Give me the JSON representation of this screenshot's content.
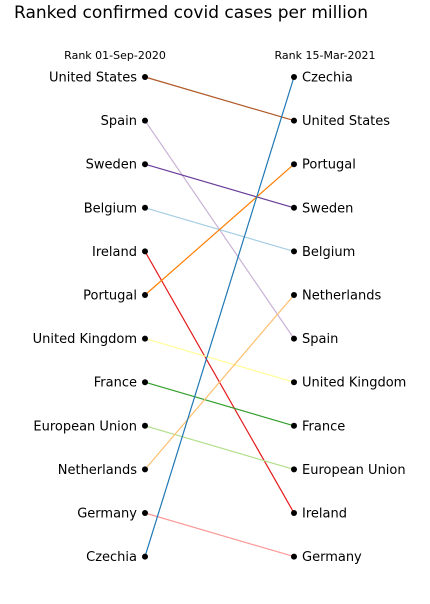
{
  "chart_data": {
    "type": "slope",
    "title": "Ranked confirmed covid cases per million",
    "left_header": "Rank 01-Sep-2020",
    "right_header": "Rank 15-Mar-2021",
    "left_order": [
      "United States",
      "Spain",
      "Sweden",
      "Belgium",
      "Ireland",
      "Portugal",
      "United Kingdom",
      "France",
      "European Union",
      "Netherlands",
      "Germany",
      "Czechia"
    ],
    "right_order": [
      "Czechia",
      "United States",
      "Portugal",
      "Sweden",
      "Belgium",
      "Netherlands",
      "Spain",
      "United Kingdom",
      "France",
      "European Union",
      "Ireland",
      "Germany"
    ],
    "series": [
      {
        "name": "United States",
        "rank_start": 1,
        "rank_end": 2,
        "color": "#b15928"
      },
      {
        "name": "Spain",
        "rank_start": 2,
        "rank_end": 7,
        "color": "#cab2d6"
      },
      {
        "name": "Sweden",
        "rank_start": 3,
        "rank_end": 4,
        "color": "#6a3d9a"
      },
      {
        "name": "Belgium",
        "rank_start": 4,
        "rank_end": 5,
        "color": "#a6cee3"
      },
      {
        "name": "Ireland",
        "rank_start": 5,
        "rank_end": 11,
        "color": "#e31a1c"
      },
      {
        "name": "Portugal",
        "rank_start": 6,
        "rank_end": 3,
        "color": "#ff7f00"
      },
      {
        "name": "United Kingdom",
        "rank_start": 7,
        "rank_end": 8,
        "color": "#ffff99"
      },
      {
        "name": "France",
        "rank_start": 8,
        "rank_end": 9,
        "color": "#33a02c"
      },
      {
        "name": "European Union",
        "rank_start": 9,
        "rank_end": 10,
        "color": "#b2df8a"
      },
      {
        "name": "Netherlands",
        "rank_start": 10,
        "rank_end": 6,
        "color": "#fdbf6f"
      },
      {
        "name": "Germany",
        "rank_start": 11,
        "rank_end": 12,
        "color": "#fb9a99"
      },
      {
        "name": "Czechia",
        "rank_start": 12,
        "rank_end": 1,
        "color": "#1f78b4"
      }
    ],
    "marker_color": "#000000",
    "grid": false
  }
}
